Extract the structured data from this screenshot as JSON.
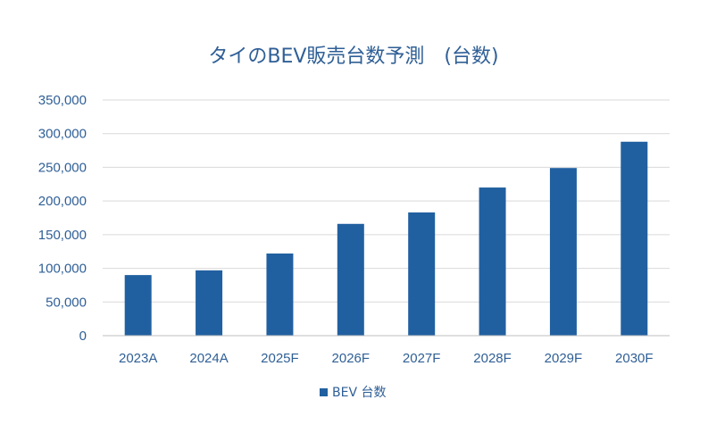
{
  "chart_data": {
    "type": "bar",
    "title": "タイのBEV販売台数予測　(台数)",
    "xlabel": "",
    "ylabel": "",
    "categories": [
      "2023A",
      "2024A",
      "2025F",
      "2026F",
      "2027F",
      "2028F",
      "2029F",
      "2030F"
    ],
    "series": [
      {
        "name": "BEV 台数",
        "values": [
          90000,
          97000,
          122000,
          166000,
          183000,
          220000,
          249000,
          288000
        ]
      }
    ],
    "ylim": [
      0,
      350000
    ],
    "yticks": [
      "0",
      "50,000",
      "100,000",
      "150,000",
      "200,000",
      "250,000",
      "300,000",
      "350,000"
    ],
    "grid": true,
    "legend": "bottom",
    "colors": {
      "bar": "#2160a0",
      "text": "#2f5f96"
    }
  }
}
